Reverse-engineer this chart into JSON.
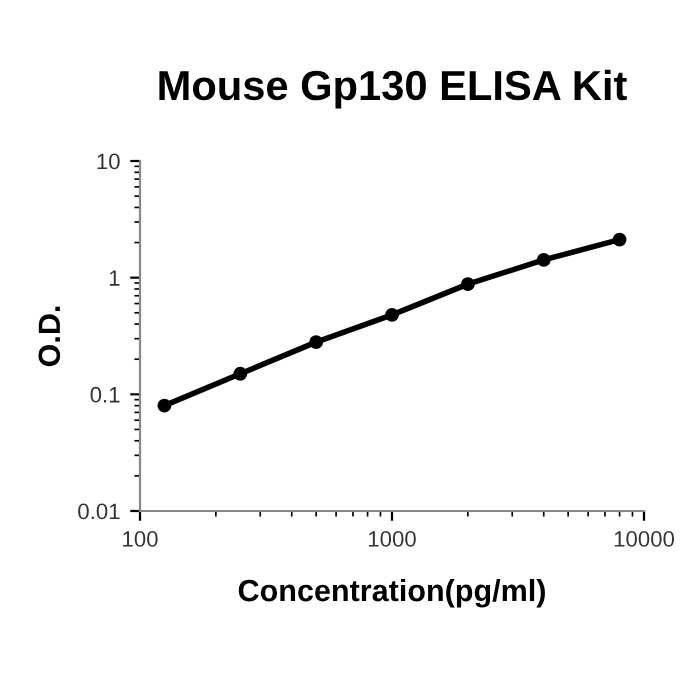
{
  "chart_data": {
    "type": "line",
    "title": "Mouse Gp130 ELISA Kit",
    "xlabel": "Concentration(pg/ml)",
    "ylabel": "O.D.",
    "log": "xy",
    "x": [
      125,
      250,
      500,
      1000,
      2000,
      4000,
      8000
    ],
    "series": [
      {
        "color": "#000000",
        "values": [
          0.08,
          0.15,
          0.28,
          0.48,
          0.88,
          1.42,
          2.12
        ]
      }
    ],
    "xlim": [
      100,
      10000
    ],
    "xticks": [
      100,
      1000,
      10000
    ],
    "ylim": [
      0.01,
      10
    ],
    "yticks": [
      0.01,
      0.1,
      1,
      10
    ],
    "marker": "circle",
    "line_style": "solid",
    "grid": false,
    "legend": false
  }
}
